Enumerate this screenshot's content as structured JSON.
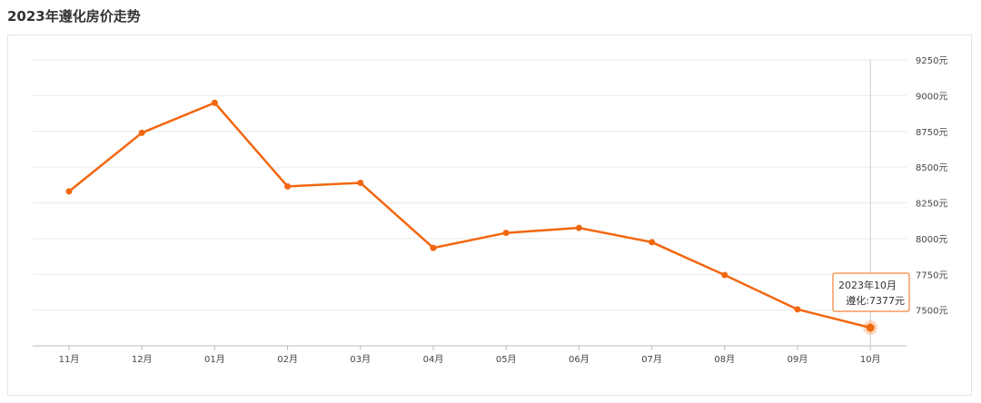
{
  "page": {
    "title": "2023年遵化房价走势"
  },
  "chart_data": {
    "type": "line",
    "title": "2023年遵化房价走势",
    "categories": [
      "11月",
      "12月",
      "01月",
      "02月",
      "03月",
      "04月",
      "05月",
      "06月",
      "07月",
      "08月",
      "09月",
      "10月"
    ],
    "series": [
      {
        "name": "遵化",
        "values": [
          8330,
          8740,
          8950,
          8365,
          8390,
          7935,
          8040,
          8075,
          7975,
          7745,
          7505,
          7377
        ],
        "color": "#f2670f"
      }
    ],
    "y_ticks": [
      7500,
      7750,
      8000,
      8250,
      8500,
      8750,
      9000,
      9250
    ],
    "y_tick_labels": [
      "7500元",
      "7750元",
      "8000元",
      "8250元",
      "8500元",
      "8750元",
      "9000元",
      "9250元"
    ],
    "ylim": [
      7250,
      9250
    ],
    "grid": true,
    "y_axis_position": "right",
    "highlight_index": 11,
    "tooltip": {
      "title": "2023年10月",
      "series_label": "遵化:7377元"
    }
  }
}
